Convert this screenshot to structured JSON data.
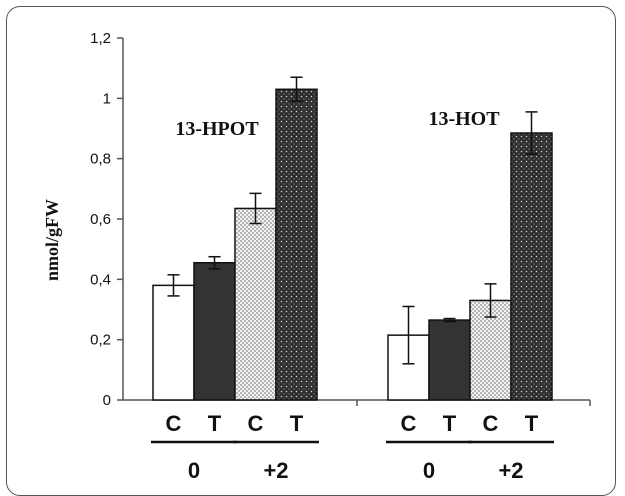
{
  "chart_data": {
    "type": "bar",
    "ylabel": "nmol/gFW",
    "ylim": [
      0,
      1.2
    ],
    "yticks": [
      "0",
      "0,2",
      "0,4",
      "0,6",
      "0,8",
      "1",
      "1,2"
    ],
    "groups": [
      {
        "name": "13-HPOT",
        "bars": [
          {
            "label": "C",
            "condition": "0",
            "value": 0.38,
            "error": 0.035,
            "fill": "white"
          },
          {
            "label": "T",
            "condition": "0",
            "value": 0.455,
            "error": 0.02,
            "fill": "dark"
          },
          {
            "label": "C",
            "condition": "+2",
            "value": 0.635,
            "error": 0.05,
            "fill": "light-dotted"
          },
          {
            "label": "T",
            "condition": "+2",
            "value": 1.03,
            "error": 0.04,
            "fill": "dark-dotted"
          }
        ]
      },
      {
        "name": "13-HOT",
        "bars": [
          {
            "label": "C",
            "condition": "0",
            "value": 0.215,
            "error": 0.095,
            "fill": "white"
          },
          {
            "label": "T",
            "condition": "0",
            "value": 0.265,
            "error": 0.005,
            "fill": "dark"
          },
          {
            "label": "C",
            "condition": "+2",
            "value": 0.33,
            "error": 0.055,
            "fill": "light-dotted"
          },
          {
            "label": "T",
            "condition": "+2",
            "value": 0.885,
            "error": 0.07,
            "fill": "dark-dotted"
          }
        ]
      }
    ],
    "conditions": [
      "0",
      "+2"
    ]
  }
}
